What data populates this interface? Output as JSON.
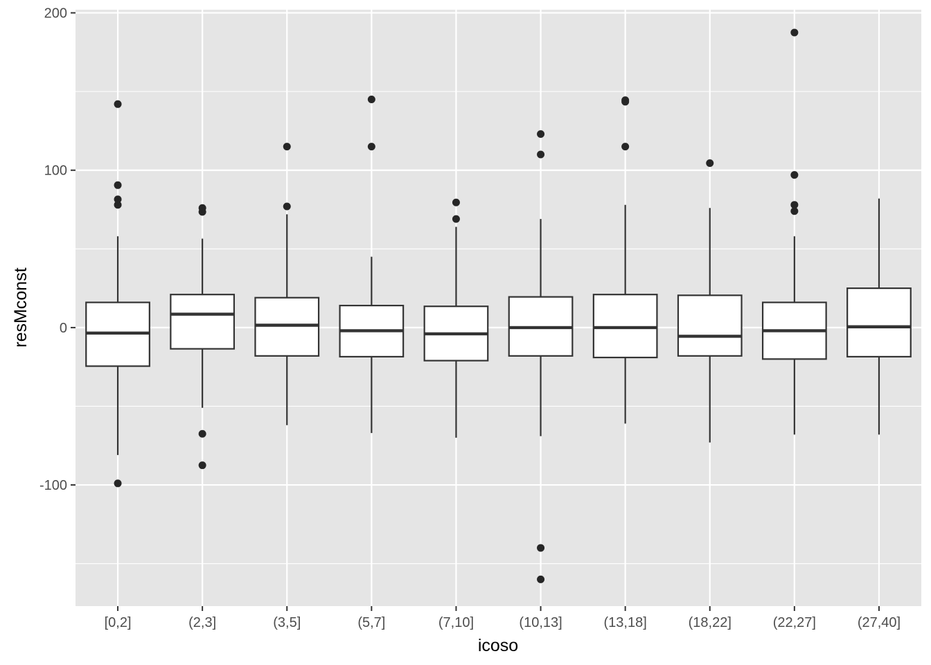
{
  "chart_data": {
    "type": "boxplot",
    "title": "",
    "xlabel": "icoso",
    "ylabel": "resMconst",
    "ylim": [
      -177,
      202
    ],
    "y_ticks": [
      -100,
      0,
      100,
      200
    ],
    "y_minor_ticks": [
      -150,
      -50,
      50,
      150
    ],
    "grid": true,
    "categories": [
      "[0,2]",
      "(2,3]",
      "(3,5]",
      "(5,7]",
      "(7,10]",
      "(10,13]",
      "(13,18]",
      "(18,22]",
      "(22,27]",
      "(27,40]"
    ],
    "boxes": [
      {
        "q1": -24.5,
        "median": -3.5,
        "q3": 16,
        "whisker_low": -81,
        "whisker_high": 58,
        "outliers": [
          142,
          90.5,
          81.5,
          78,
          -99
        ]
      },
      {
        "q1": -13.5,
        "median": 8.5,
        "q3": 21,
        "whisker_low": -51,
        "whisker_high": 56.5,
        "outliers": [
          76,
          73.5,
          -67.5,
          -87.5
        ]
      },
      {
        "q1": -18,
        "median": 1.5,
        "q3": 19,
        "whisker_low": -62,
        "whisker_high": 72,
        "outliers": [
          115,
          77
        ]
      },
      {
        "q1": -18.5,
        "median": -2,
        "q3": 14,
        "whisker_low": -67,
        "whisker_high": 45,
        "outliers": [
          145,
          115
        ]
      },
      {
        "q1": -21,
        "median": -4,
        "q3": 13.5,
        "whisker_low": -70,
        "whisker_high": 64,
        "outliers": [
          79.5,
          69
        ]
      },
      {
        "q1": -18,
        "median": 0,
        "q3": 19.5,
        "whisker_low": -69,
        "whisker_high": 69,
        "outliers": [
          123,
          110,
          -140,
          -160
        ]
      },
      {
        "q1": -19,
        "median": 0,
        "q3": 21,
        "whisker_low": -61,
        "whisker_high": 78,
        "outliers": [
          144.5,
          143.5,
          115
        ]
      },
      {
        "q1": -18,
        "median": -5.5,
        "q3": 20.5,
        "whisker_low": -73,
        "whisker_high": 76,
        "outliers": [
          104.5
        ]
      },
      {
        "q1": -20,
        "median": -2,
        "q3": 16,
        "whisker_low": -68,
        "whisker_high": 58,
        "outliers": [
          187.5,
          97,
          78,
          74
        ]
      },
      {
        "q1": -18.5,
        "median": 0.5,
        "q3": 25,
        "whisker_low": -68,
        "whisker_high": 82,
        "outliers": []
      }
    ],
    "colors": {
      "panel_background": "#e5e5e5",
      "grid": "#ffffff",
      "box_fill": "#ffffff",
      "box_line": "#333333",
      "median": "#333333",
      "outlier": "#262626"
    }
  }
}
